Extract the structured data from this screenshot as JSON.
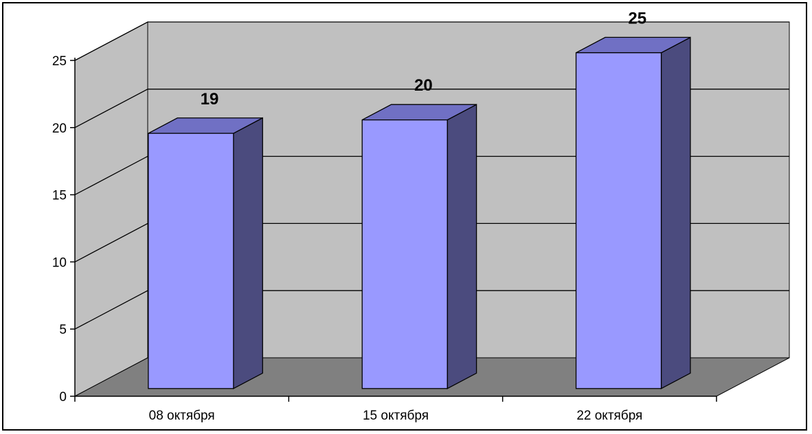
{
  "chart_data": {
    "type": "bar",
    "style": "3d-column",
    "categories": [
      "08 октября",
      "15 октября",
      "22 октября"
    ],
    "values": [
      19,
      20,
      25
    ],
    "data_labels": [
      "19",
      "20",
      "25"
    ],
    "title": "",
    "xlabel": "",
    "ylabel": "",
    "ylim": [
      0,
      25
    ],
    "yticks": [
      "0",
      "5",
      "10",
      "15",
      "20",
      "25"
    ],
    "grid": true,
    "legend": "none"
  },
  "colors": {
    "bar_front": "#9999ff",
    "bar_top": "#7070c4",
    "bar_side": "#4b4b7e",
    "back_wall": "#c0c0c0",
    "side_wall": "#c0c0c0",
    "floor": "#808080"
  }
}
